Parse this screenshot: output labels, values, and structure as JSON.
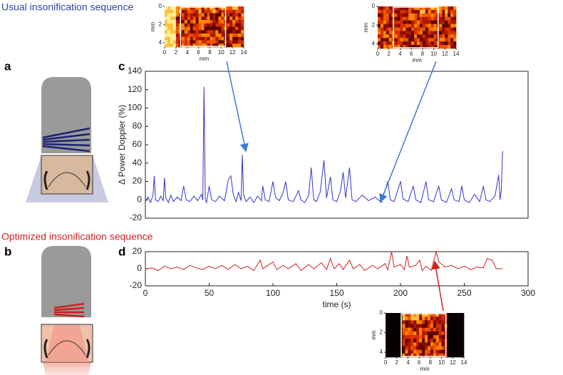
{
  "headings": {
    "usual": "Usual insonification sequence",
    "optimized": "Optimized insonification sequence"
  },
  "panels": {
    "a": "a",
    "b": "b",
    "c": "c",
    "d": "d"
  },
  "chart_data": [
    {
      "type": "line",
      "ylabel": "Δ Power Doppler (%)",
      "color": "#3333cc",
      "xlim": [
        0,
        300
      ],
      "ylim": [
        -20,
        140
      ],
      "yticks": [
        -20,
        0,
        20,
        40,
        60,
        80,
        100,
        120,
        140
      ],
      "x": [
        0,
        2,
        4,
        6,
        7,
        8,
        10,
        12,
        14,
        15,
        16,
        18,
        20,
        22,
        25,
        28,
        30,
        32,
        35,
        38,
        41,
        44,
        45,
        46,
        47,
        48,
        50,
        52,
        55,
        58,
        62,
        65,
        67,
        69,
        71,
        73,
        75,
        76,
        77,
        79,
        82,
        85,
        88,
        91,
        92,
        94,
        97,
        100,
        102,
        105,
        108,
        110,
        112,
        116,
        120,
        122,
        125,
        128,
        130,
        132,
        134,
        137,
        140,
        142,
        145,
        147,
        150,
        153,
        155,
        157,
        160,
        162,
        165,
        170,
        175,
        180,
        185,
        190,
        192,
        195,
        200,
        202,
        206,
        210,
        212,
        216,
        220,
        222,
        226,
        230,
        232,
        236,
        240,
        242,
        246,
        248,
        250,
        254,
        258,
        262,
        265,
        267,
        270,
        274,
        277,
        278,
        279,
        280
      ],
      "values": [
        -2,
        3,
        -3,
        5,
        26,
        0,
        -2,
        4,
        -1,
        24,
        2,
        -3,
        5,
        -2,
        3,
        -1,
        15,
        0,
        -2,
        4,
        -1,
        6,
        0,
        123,
        0,
        -3,
        15,
        0,
        -2,
        4,
        -1,
        22,
        26,
        5,
        -2,
        8,
        -1,
        49,
        5,
        -2,
        3,
        -3,
        4,
        -1,
        15,
        0,
        -2,
        20,
        3,
        -1,
        8,
        20,
        0,
        -2,
        10,
        0,
        -3,
        5,
        35,
        0,
        -2,
        8,
        43,
        2,
        25,
        0,
        -2,
        10,
        30,
        2,
        35,
        0,
        -2,
        5,
        -1,
        3,
        -3,
        20,
        0,
        -2,
        20,
        1,
        -2,
        15,
        0,
        -3,
        20,
        0,
        -2,
        15,
        0,
        -3,
        12,
        0,
        -2,
        15,
        0,
        -3,
        6,
        -2,
        15,
        0,
        -2,
        4,
        27,
        0,
        10,
        53
      ]
    },
    {
      "type": "line",
      "xlabel": "time (s)",
      "color": "#cc2222",
      "xlim": [
        0,
        300
      ],
      "ylim": [
        -20,
        20
      ],
      "xticks": [
        0,
        50,
        100,
        150,
        200,
        250,
        300
      ],
      "yticks": [
        -20,
        0,
        20
      ],
      "x": [
        0,
        5,
        10,
        15,
        20,
        25,
        30,
        35,
        40,
        45,
        50,
        55,
        60,
        65,
        70,
        75,
        80,
        85,
        90,
        92,
        95,
        100,
        103,
        108,
        112,
        118,
        122,
        128,
        132,
        138,
        142,
        145,
        148,
        152,
        155,
        160,
        163,
        168,
        172,
        178,
        182,
        188,
        190,
        193,
        195,
        200,
        203,
        205,
        207,
        212,
        215,
        217,
        220,
        224,
        228,
        230,
        235,
        240,
        245,
        250,
        255,
        260,
        265,
        268,
        272,
        275,
        280
      ],
      "values": [
        0,
        1,
        -2,
        3,
        0,
        2,
        -1,
        4,
        1,
        -1,
        3,
        0,
        4,
        -1,
        5,
        0,
        3,
        -2,
        10,
        0,
        3,
        8,
        -1,
        4,
        0,
        6,
        -2,
        5,
        0,
        7,
        -1,
        12,
        0,
        6,
        -1,
        10,
        0,
        5,
        -2,
        4,
        0,
        6,
        -1,
        20,
        2,
        5,
        -1,
        15,
        2,
        4,
        10,
        -2,
        3,
        -2,
        20,
        8,
        2,
        4,
        0,
        3,
        -1,
        2,
        1,
        12,
        10,
        0,
        0
      ]
    },
    {
      "type": "image",
      "xlabel": "mm",
      "ylabel": "mm",
      "xlim": [
        0,
        14
      ],
      "ylim": [
        0,
        4.5
      ],
      "xticks": [
        0,
        2,
        4,
        6,
        8,
        10,
        12,
        14
      ],
      "yticks": [
        0,
        2,
        4
      ]
    },
    {
      "type": "image",
      "xlabel": "mm",
      "ylabel": "mm",
      "xlim": [
        0,
        14
      ],
      "ylim": [
        0,
        4.5
      ],
      "xticks": [
        0,
        2,
        4,
        6,
        8,
        10,
        12,
        14
      ],
      "yticks": [
        0,
        2,
        4
      ]
    },
    {
      "type": "image",
      "xlabel": "mm",
      "ylabel": "mm",
      "xlim": [
        0,
        14
      ],
      "ylim": [
        0,
        4.5
      ],
      "xticks": [
        0,
        2,
        4,
        6,
        8,
        10,
        12,
        14
      ],
      "yticks": [
        0,
        2,
        4
      ]
    }
  ]
}
